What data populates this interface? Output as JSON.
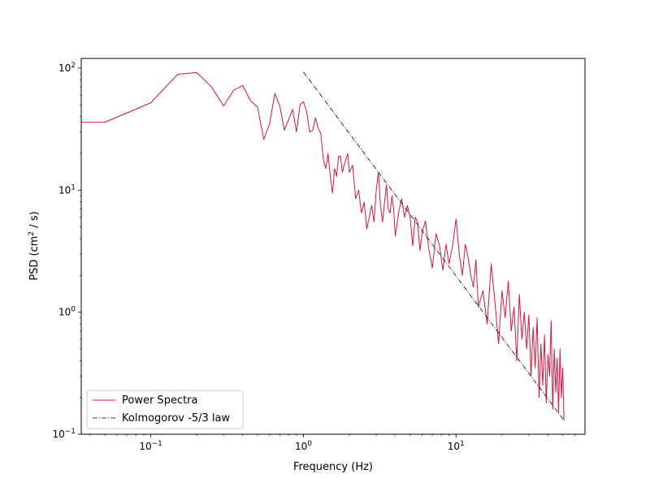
{
  "chart_data": {
    "type": "line",
    "xlabel": "Frequency (Hz)",
    "ylabel_main": "PSD (cm",
    "ylabel_sup": "2",
    "ylabel_tail": " / s)",
    "xscale": "log",
    "yscale": "log",
    "xlim": [
      0.035,
      70
    ],
    "ylim": [
      0.1,
      120
    ],
    "xticks": [
      {
        "value": 0.1,
        "base": "10",
        "exp": "−1"
      },
      {
        "value": 1,
        "base": "10",
        "exp": "0"
      },
      {
        "value": 10,
        "base": "10",
        "exp": "1"
      }
    ],
    "yticks": [
      {
        "value": 0.1,
        "base": "10",
        "exp": "−1"
      },
      {
        "value": 1,
        "base": "10",
        "exp": "0"
      },
      {
        "value": 10,
        "base": "10",
        "exp": "1"
      },
      {
        "value": 100,
        "base": "10",
        "exp": "2"
      }
    ],
    "grid": false,
    "legend_position": "lower-left",
    "series": [
      {
        "name": "Power Spectra",
        "color": "#dc143c",
        "style": "solid",
        "points": [
          [
            0.035,
            36
          ],
          [
            0.05,
            36
          ],
          [
            0.1,
            52
          ],
          [
            0.15,
            89
          ],
          [
            0.2,
            92
          ],
          [
            0.25,
            70
          ],
          [
            0.3,
            49
          ],
          [
            0.35,
            66
          ],
          [
            0.4,
            72
          ],
          [
            0.45,
            54
          ],
          [
            0.5,
            48
          ],
          [
            0.55,
            26
          ],
          [
            0.6,
            35
          ],
          [
            0.65,
            62
          ],
          [
            0.7,
            49
          ],
          [
            0.75,
            31
          ],
          [
            0.8,
            38
          ],
          [
            0.85,
            46
          ],
          [
            0.9,
            30
          ],
          [
            0.95,
            50
          ],
          [
            1.0,
            53
          ],
          [
            1.05,
            44
          ],
          [
            1.1,
            30
          ],
          [
            1.15,
            31
          ],
          [
            1.2,
            39
          ],
          [
            1.25,
            32
          ],
          [
            1.3,
            29
          ],
          [
            1.35,
            18
          ],
          [
            1.4,
            15
          ],
          [
            1.45,
            20
          ],
          [
            1.5,
            13
          ],
          [
            1.55,
            9.5
          ],
          [
            1.6,
            15
          ],
          [
            1.65,
            13
          ],
          [
            1.7,
            19
          ],
          [
            1.75,
            19
          ],
          [
            1.8,
            14
          ],
          [
            1.85,
            16
          ],
          [
            1.9,
            18
          ],
          [
            1.95,
            20
          ],
          [
            2.0,
            14
          ],
          [
            2.1,
            16
          ],
          [
            2.2,
            8.5
          ],
          [
            2.3,
            10
          ],
          [
            2.4,
            6.5
          ],
          [
            2.5,
            8
          ],
          [
            2.6,
            4.8
          ],
          [
            2.7,
            6
          ],
          [
            2.8,
            7.5
          ],
          [
            2.9,
            5.5
          ],
          [
            3.0,
            10
          ],
          [
            3.1,
            14
          ],
          [
            3.2,
            7.5
          ],
          [
            3.3,
            5.5
          ],
          [
            3.4,
            8
          ],
          [
            3.5,
            11
          ],
          [
            3.6,
            7
          ],
          [
            3.7,
            6.5
          ],
          [
            3.8,
            9
          ],
          [
            3.9,
            7
          ],
          [
            4.0,
            4.2
          ],
          [
            4.2,
            6.5
          ],
          [
            4.4,
            8.5
          ],
          [
            4.6,
            6
          ],
          [
            4.8,
            7.5
          ],
          [
            5.0,
            6
          ],
          [
            5.2,
            3.5
          ],
          [
            5.4,
            6
          ],
          [
            5.6,
            5.5
          ],
          [
            5.8,
            3.2
          ],
          [
            6.0,
            4.5
          ],
          [
            6.3,
            5.6
          ],
          [
            6.6,
            3.4
          ],
          [
            7.0,
            2.3
          ],
          [
            7.4,
            4.4
          ],
          [
            7.8,
            3.5
          ],
          [
            8.2,
            2.2
          ],
          [
            8.6,
            3.6
          ],
          [
            9.0,
            2.5
          ],
          [
            9.5,
            3.5
          ],
          [
            10.0,
            5.8
          ],
          [
            10.5,
            3
          ],
          [
            11.0,
            2
          ],
          [
            11.5,
            3.6
          ],
          [
            12.0,
            2.8
          ],
          [
            12.5,
            2
          ],
          [
            13.0,
            1.6
          ],
          [
            13.5,
            2.7
          ],
          [
            14.0,
            1.1
          ],
          [
            15.0,
            1.5
          ],
          [
            16.0,
            0.8
          ],
          [
            17.0,
            2.5
          ],
          [
            18.0,
            1.2
          ],
          [
            19.0,
            0.55
          ],
          [
            20.0,
            1.5
          ],
          [
            21.0,
            0.9
          ],
          [
            22.0,
            1.8
          ],
          [
            23.0,
            0.7
          ],
          [
            24.0,
            1.1
          ],
          [
            25.0,
            0.4
          ],
          [
            26.0,
            1.4
          ],
          [
            27.0,
            0.6
          ],
          [
            28.0,
            1.0
          ],
          [
            29.0,
            0.5
          ],
          [
            30.0,
            0.95
          ],
          [
            31.0,
            0.3
          ],
          [
            32.0,
            0.75
          ],
          [
            33.0,
            0.35
          ],
          [
            34.0,
            0.9
          ],
          [
            35.0,
            0.2
          ],
          [
            36.0,
            0.55
          ],
          [
            37.0,
            0.25
          ],
          [
            38.0,
            0.65
          ],
          [
            39.0,
            0.18
          ],
          [
            40.0,
            0.45
          ],
          [
            41.0,
            0.3
          ],
          [
            42.0,
            0.85
          ],
          [
            43.0,
            0.16
          ],
          [
            44.0,
            0.5
          ],
          [
            45.0,
            0.22
          ],
          [
            46.0,
            0.42
          ],
          [
            47.0,
            0.15
          ],
          [
            48.0,
            0.5
          ],
          [
            49.0,
            0.2
          ],
          [
            50.0,
            0.35
          ],
          [
            51.0,
            0.13
          ]
        ]
      },
      {
        "name": "Kolmogorov -5/3 law",
        "color": "#000000",
        "style": "dashdot",
        "points": [
          [
            1.0,
            93
          ],
          [
            51.0,
            0.13
          ]
        ]
      }
    ]
  }
}
